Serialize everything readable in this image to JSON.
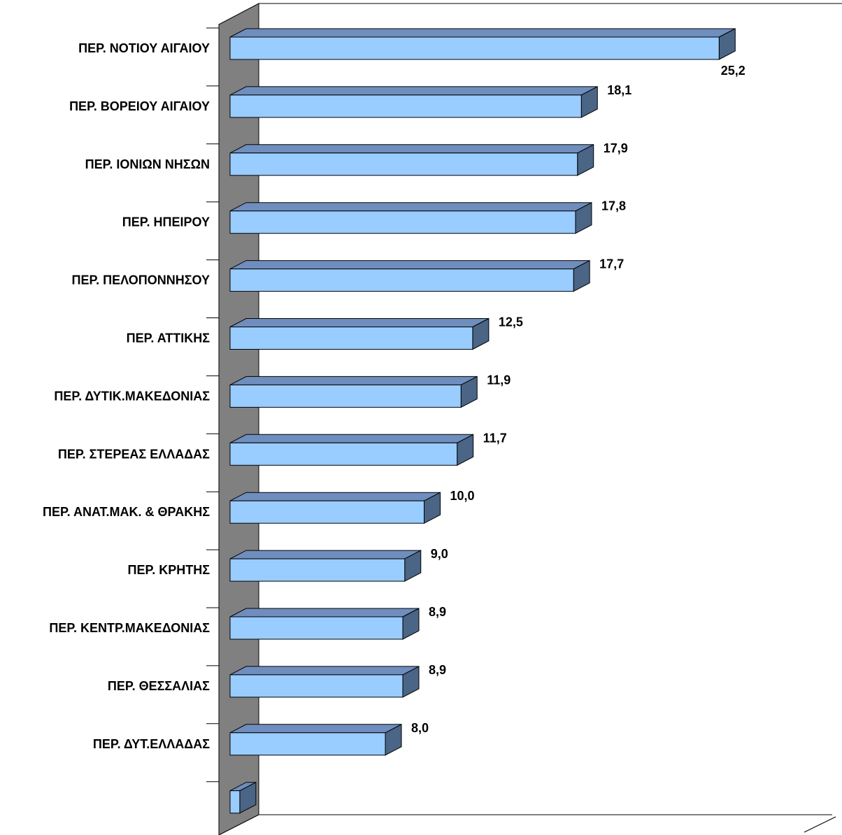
{
  "chart_data": {
    "type": "bar",
    "orientation": "horizontal",
    "style": "3d",
    "categories": [
      "ΠΕΡ. ΝΟΤΙΟΥ ΑΙΓΑΙΟΥ",
      "ΠΕΡ. ΒΟΡΕΙΟΥ ΑΙΓΑΙΟΥ",
      "ΠΕΡ. ΙΟΝΙΩΝ ΝΗΣΩΝ",
      "ΠΕΡ. ΗΠΕΙΡΟΥ",
      "ΠΕΡ. ΠΕΛΟΠΟΝΝΗΣΟΥ",
      "ΠΕΡ. ΑΤΤΙΚΗΣ",
      "ΠΕΡ. ΔΥΤΙΚ.ΜΑΚΕΔΟΝΙΑΣ",
      "ΠΕΡ. ΣΤΕΡΕΑΣ ΕΛΛΑΔΑΣ",
      "ΠΕΡ. ΑΝΑΤ.ΜΑΚ. & ΘΡΑΚΗΣ",
      "ΠΕΡ. ΚΡΗΤΗΣ",
      "ΠΕΡ. ΚΕΝΤΡ.ΜΑΚΕΔΟΝΙΑΣ",
      "ΠΕΡ. ΘΕΣΣΑΛΙΑΣ",
      "ΠΕΡ. ΔΥΤ.ΕΛΛΑΔΑΣ",
      ""
    ],
    "values": [
      25.2,
      18.1,
      17.9,
      17.8,
      17.7,
      12.5,
      11.9,
      11.7,
      10.0,
      9.0,
      8.9,
      8.9,
      8.0,
      0.5
    ],
    "value_labels": [
      "25,2",
      "18,1",
      "17,9",
      "17,8",
      "17,7",
      "12,5",
      "11,9",
      "11,7",
      "10,0",
      "9,0",
      "8,9",
      "8,9",
      "8,0",
      ""
    ],
    "title": "",
    "xlabel": "",
    "ylabel": "",
    "xlim": [
      0,
      30
    ],
    "grid": false,
    "legend": "none",
    "colors": {
      "bar_front": "#99ccff",
      "bar_top": "#6f8ebe",
      "bar_side": "#4a6585",
      "wall": "#808080",
      "outline": "#000000"
    }
  }
}
